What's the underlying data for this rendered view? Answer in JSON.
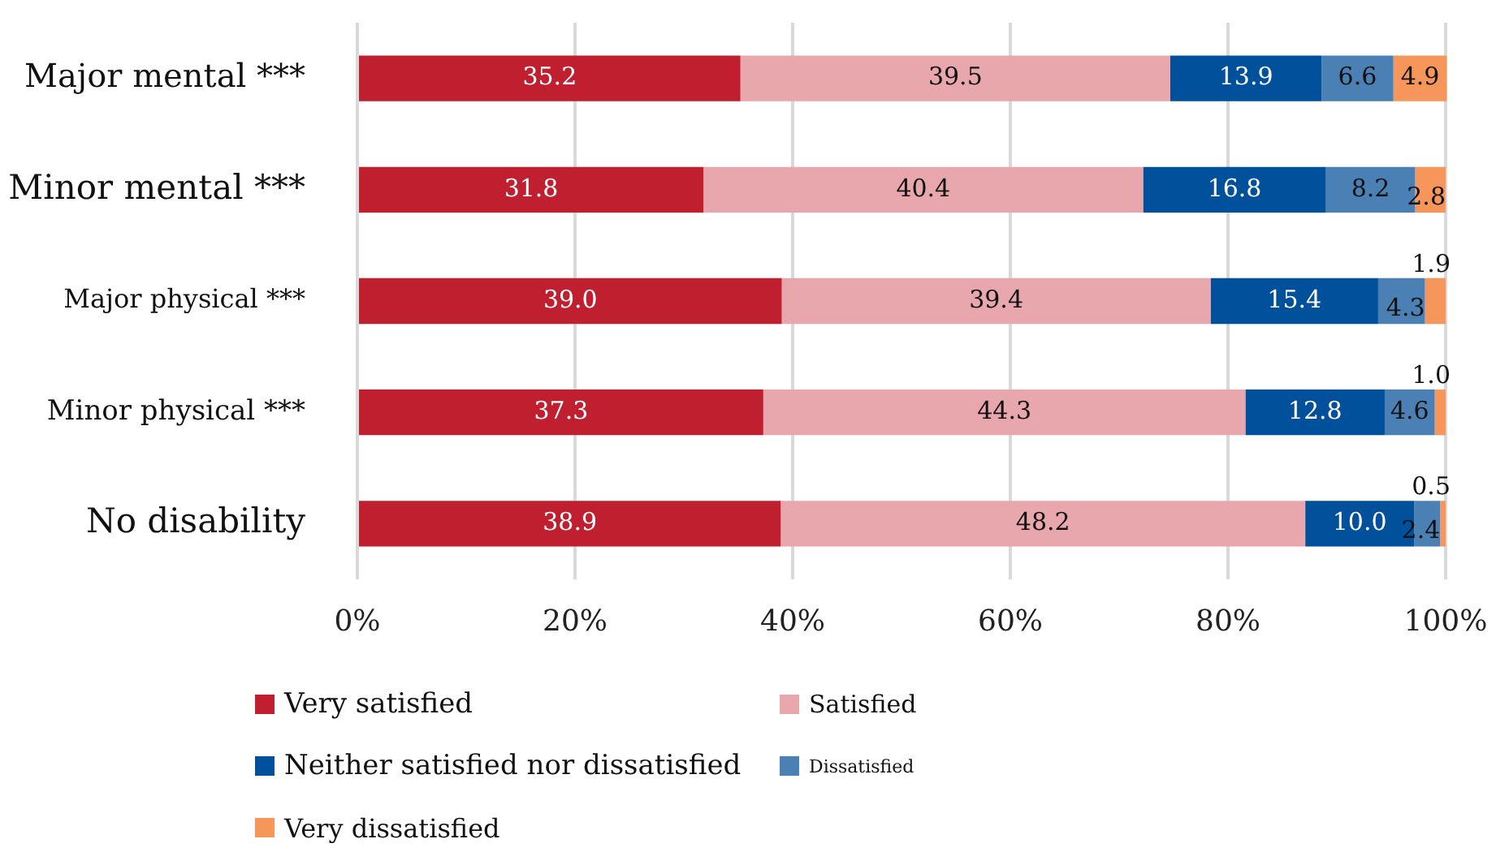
{
  "chart_data": {
    "type": "bar",
    "orientation": "horizontal",
    "stacked": true,
    "categories": [
      "Major mental ***",
      "Minor mental ***",
      "Major physical ***",
      "Minor physical ***",
      "No disability"
    ],
    "series": [
      {
        "name": "Very satisfied",
        "color": "#c01f30",
        "values": [
          35.2,
          31.8,
          39.0,
          37.3,
          38.9
        ],
        "value_labels": [
          "35.2",
          "31.8",
          "39.0",
          "37.3",
          "38.9"
        ]
      },
      {
        "name": "Satisfied",
        "color": "#e8a6ad",
        "values": [
          39.5,
          40.4,
          39.4,
          44.3,
          48.2
        ],
        "value_labels": [
          "39.5",
          "40.4",
          "39.4",
          "44.3",
          "48.2"
        ]
      },
      {
        "name": "Neither satisfied nor dissatisfied",
        "color": "#00509b",
        "values": [
          13.9,
          16.8,
          15.4,
          12.8,
          10.0
        ],
        "value_labels": [
          "13.9",
          "16.8",
          "15.4",
          "12.8",
          "10.0"
        ]
      },
      {
        "name": "Dissatisfied",
        "color": "#4a80b4",
        "values": [
          6.6,
          8.2,
          4.3,
          4.6,
          2.4
        ],
        "value_labels": [
          "6.6",
          "8.2",
          "4.3",
          "4.6",
          "2.4"
        ]
      },
      {
        "name": "Very dissatisfied",
        "color": "#f6965a",
        "values": [
          4.9,
          2.8,
          1.9,
          1.0,
          0.5
        ],
        "value_labels": [
          "4.9",
          "2.8",
          "1.9",
          "1.0",
          "0.5"
        ]
      }
    ],
    "xlim": [
      0,
      100
    ],
    "xticks": [
      {
        "value": 0,
        "label": "0%"
      },
      {
        "value": 20,
        "label": "20%"
      },
      {
        "value": 40,
        "label": "40%"
      },
      {
        "value": 60,
        "label": "60%"
      },
      {
        "value": 80,
        "label": "80%"
      },
      {
        "value": 100,
        "label": "100%"
      }
    ],
    "grid": "x",
    "legend": "bottom"
  }
}
